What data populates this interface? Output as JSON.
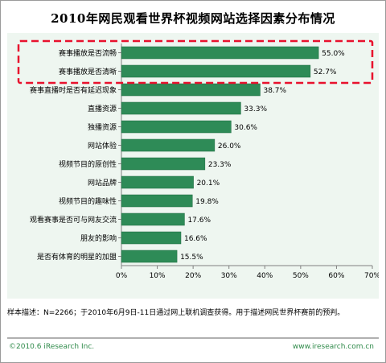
{
  "title": "2010年网民观看世界杯视频网站选择因素分布情况",
  "note": "样本描述：N=2266；于2010年6月9日-11日通过网上联机调查获得。用于描述网民世界杯赛前的预判。",
  "copyright": "©2010.6 iResearch Inc.",
  "website": "www.iresearch.com.cn",
  "colors": {
    "bar": "#2e8b57",
    "bar_stroke": "#1f6b40",
    "plot_bg": "#eef6f0",
    "highlight": "#e8112d"
  },
  "chart_data": {
    "type": "bar",
    "orientation": "horizontal",
    "categories": [
      "赛事播放是否流畅",
      "赛事播放是否清晰",
      "赛事直播时是否有延迟现象",
      "直播资源",
      "独播资源",
      "网站体验",
      "视频节目的原创性",
      "网站品牌",
      "视频节目的趣味性",
      "观看赛事是否可与网友交流",
      "朋友的影响",
      "是否有体育的明星的加盟"
    ],
    "values": [
      55.0,
      52.7,
      38.7,
      33.3,
      30.6,
      26.0,
      23.3,
      20.1,
      19.8,
      17.6,
      16.6,
      15.5
    ],
    "value_labels": [
      "55.0%",
      "52.7%",
      "38.7%",
      "33.3%",
      "30.6%",
      "26.0%",
      "23.3%",
      "20.1%",
      "19.8%",
      "17.6%",
      "16.6%",
      "15.5%"
    ],
    "xlim": [
      0,
      70
    ],
    "xticks": [
      "0%",
      "10%",
      "20%",
      "30%",
      "40%",
      "50%",
      "60%",
      "70%"
    ],
    "grid": false,
    "highlighted": [
      "赛事播放是否流畅",
      "赛事播放是否清晰"
    ]
  }
}
